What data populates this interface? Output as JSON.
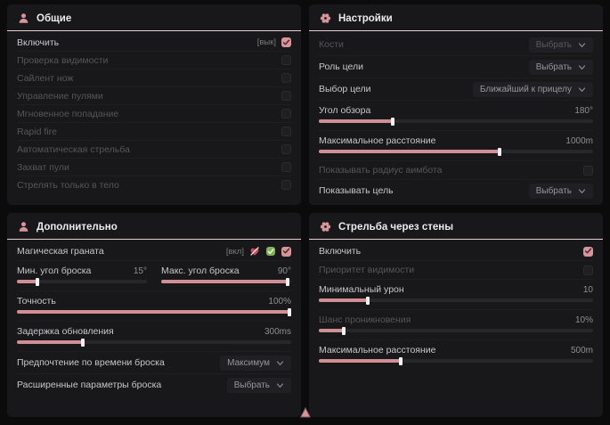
{
  "theme": {
    "accent": "#d5959b",
    "header_underline": "#e9cdd1",
    "panel_bg": "#18181a",
    "page_bg": "#0b0b0c",
    "slider_fill": "#d08f95"
  },
  "panels": {
    "general": {
      "title": "Общие",
      "icon": "person-icon",
      "rows": [
        {
          "type": "checkbox",
          "label": "Включить",
          "tag": "[вык]",
          "checked": true,
          "enabled": true
        },
        {
          "type": "checkbox",
          "label": "Проверка видимости",
          "checked": false,
          "enabled": false
        },
        {
          "type": "checkbox",
          "label": "Сайлент нож",
          "checked": false,
          "enabled": false
        },
        {
          "type": "checkbox",
          "label": "Управление пулями",
          "checked": false,
          "enabled": false
        },
        {
          "type": "checkbox",
          "label": "Мгновенное попадание",
          "checked": false,
          "enabled": false
        },
        {
          "type": "checkbox",
          "label": "Rapid fire",
          "checked": false,
          "enabled": false
        },
        {
          "type": "checkbox",
          "label": "Автоматическая стрельба",
          "checked": false,
          "enabled": false
        },
        {
          "type": "checkbox",
          "label": "Захват пули",
          "checked": false,
          "enabled": false
        },
        {
          "type": "checkbox",
          "label": "Стрелять только в тело",
          "checked": false,
          "enabled": false
        }
      ]
    },
    "settings": {
      "title": "Настройки",
      "icon": "gear-icon",
      "rows": [
        {
          "type": "dropdown",
          "label": "Кости",
          "value": "Выбрать",
          "enabled": false
        },
        {
          "type": "dropdown",
          "label": "Роль цели",
          "value": "Выбрать",
          "enabled": true
        },
        {
          "type": "dropdown",
          "label": "Выбор цели",
          "value": "Ближайший к прицелу",
          "enabled": true
        },
        {
          "type": "slider",
          "label": "Угол обзора",
          "value": "180°",
          "percent": 27,
          "enabled": true
        },
        {
          "type": "slider",
          "label": "Максимальное расстояние",
          "value": "1000m",
          "percent": 66,
          "enabled": true
        },
        {
          "type": "checkbox",
          "label": "Показывать радиус аимбота",
          "checked": false,
          "enabled": false
        },
        {
          "type": "dropdown",
          "label": "Показывать цель",
          "value": "Выбрать",
          "enabled": true
        }
      ]
    },
    "additional": {
      "title": "Дополнительно",
      "icon": "person-icon",
      "rows": [
        {
          "type": "checkbox",
          "label": "Магическая граната",
          "tag": "[вкл]",
          "checked": true,
          "enabled": true,
          "extra_icons": [
            "heart-off-icon",
            "check-shield-icon"
          ]
        },
        {
          "type": "slider-pair",
          "sliders": [
            {
              "label": "Мин. угол броска",
              "value": "15°",
              "percent": 16
            },
            {
              "label": "Макс. угол броска",
              "value": "90°",
              "percent": 97
            }
          ]
        },
        {
          "type": "slider",
          "label": "Точность",
          "value": "100%",
          "percent": 100,
          "enabled": true
        },
        {
          "type": "slider",
          "label": "Задержка обновления",
          "value": "300ms",
          "percent": 24,
          "enabled": true
        },
        {
          "type": "dropdown",
          "label": "Предпочтение по времени броска",
          "value": "Максимум",
          "enabled": true
        },
        {
          "type": "dropdown",
          "label": "Расширенные параметры броска",
          "value": "Выбрать",
          "enabled": true
        }
      ]
    },
    "wallshoot": {
      "title": "Стрельба через стены",
      "icon": "gear-icon",
      "rows": [
        {
          "type": "checkbox",
          "label": "Включить",
          "checked": true,
          "enabled": true
        },
        {
          "type": "checkbox",
          "label": "Приоритет видимости",
          "checked": false,
          "enabled": false
        },
        {
          "type": "slider",
          "label": "Минимальный урон",
          "value": "10",
          "percent": 18,
          "enabled": true
        },
        {
          "type": "slider",
          "label": "Шанс проникновения",
          "value": "10%",
          "percent": 9,
          "enabled": false
        },
        {
          "type": "slider",
          "label": "Максимальное расстояние",
          "value": "500m",
          "percent": 30,
          "enabled": true
        }
      ]
    }
  },
  "cursor": {
    "icon": "cursor-icon"
  }
}
